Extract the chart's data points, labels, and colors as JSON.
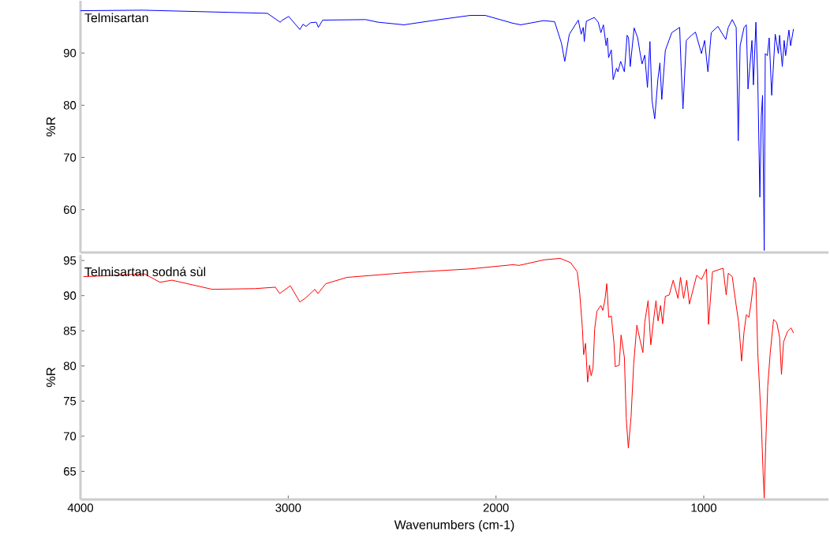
{
  "chart_data": [
    {
      "type": "line",
      "ylabel": "%R",
      "xlim": [
        4000,
        400
      ],
      "ylim": [
        51.8,
        100
      ],
      "yticks": [
        60,
        70,
        80,
        90
      ],
      "tick_labels": "y",
      "grid": false,
      "legend": false,
      "series": [
        {
          "name": "Telmisartan",
          "color": "#0000ff",
          "x": [
            4000,
            3700,
            3400,
            3100,
            3039,
            3028,
            2998,
            2944,
            2929,
            2914,
            2893,
            2865,
            2855,
            2834,
            2627,
            2568,
            2443,
            2272,
            2124,
            2052,
            1919,
            1881,
            1771,
            1718,
            1685,
            1669,
            1647,
            1604,
            1590,
            1580,
            1575,
            1565,
            1527,
            1508,
            1495,
            1483,
            1470,
            1464,
            1458,
            1445,
            1436,
            1420,
            1413,
            1400,
            1382,
            1369,
            1362,
            1354,
            1335,
            1318,
            1306,
            1297,
            1284,
            1271,
            1259,
            1249,
            1236,
            1221,
            1211,
            1202,
            1185,
            1154,
            1116,
            1109,
            1100,
            1084,
            1059,
            1040,
            1011,
            996,
            980,
            964,
            932,
            894,
            882,
            863,
            844,
            834,
            825,
            806,
            795,
            787,
            768,
            761,
            749,
            740,
            730,
            723,
            717,
            709,
            704,
            694,
            685,
            673,
            656,
            641,
            635,
            622,
            613,
            606,
            590,
            582,
            568
          ],
          "values": [
            98.1,
            98.2,
            97.9,
            97.6,
            95.9,
            96.3,
            97.0,
            94.5,
            95.5,
            95.1,
            95.8,
            95.9,
            94.9,
            96.3,
            96.4,
            95.9,
            95.4,
            96.4,
            97.2,
            97.2,
            95.7,
            95.4,
            96.2,
            96.0,
            91.9,
            88.4,
            93.6,
            96.3,
            93.6,
            94.9,
            92.2,
            96.1,
            96.8,
            95.9,
            93.9,
            95.4,
            91.4,
            92.9,
            89.1,
            90.6,
            84.9,
            87.1,
            86.4,
            88.4,
            86.4,
            93.4,
            92.9,
            87.4,
            94.8,
            92.9,
            89.9,
            87.9,
            89.6,
            83.4,
            92.2,
            80.9,
            77.4,
            84.9,
            88.1,
            81.1,
            90.5,
            93.9,
            94.9,
            87.4,
            79.3,
            92.4,
            93.4,
            94.0,
            89.9,
            92.4,
            86.4,
            93.9,
            95.1,
            92.6,
            94.9,
            96.4,
            94.9,
            73.2,
            91.4,
            94.9,
            95.4,
            83.1,
            92.4,
            83.9,
            95.9,
            84.9,
            62.4,
            77.9,
            81.9,
            52.2,
            89.9,
            89.5,
            92.9,
            81.9,
            93.6,
            89.9,
            93.4,
            87.4,
            92.4,
            89.5,
            94.4,
            91.4,
            94.6
          ]
        }
      ]
    },
    {
      "type": "line",
      "xlabel": "Wavenumbers (cm-1)",
      "ylabel": "%R",
      "xlim": [
        4000,
        400
      ],
      "ylim": [
        61,
        95.8
      ],
      "xticks": [
        4000,
        3000,
        2000,
        1000
      ],
      "yticks": [
        65,
        70,
        75,
        80,
        85,
        90,
        95
      ],
      "grid": false,
      "legend": false,
      "series": [
        {
          "name": "Telmisartan sodná sùl",
          "color": "#ff0000",
          "x": [
            3986,
            3825,
            3692,
            3617,
            3560,
            3366,
            3159,
            3062,
            3041,
            2990,
            2944,
            2915,
            2872,
            2857,
            2819,
            2717,
            2420,
            2124,
            1919,
            1889,
            1767,
            1691,
            1641,
            1609,
            1597,
            1584,
            1578,
            1569,
            1559,
            1550,
            1542,
            1533,
            1525,
            1514,
            1495,
            1486,
            1476,
            1467,
            1457,
            1445,
            1432,
            1426,
            1407,
            1398,
            1382,
            1373,
            1363,
            1350,
            1337,
            1322,
            1306,
            1293,
            1284,
            1268,
            1255,
            1242,
            1230,
            1220,
            1208,
            1198,
            1185,
            1166,
            1147,
            1124,
            1112,
            1097,
            1082,
            1069,
            1034,
            1011,
            987,
            977,
            958,
            907,
            892,
            882,
            863,
            844,
            832,
            818,
            806,
            795,
            783,
            774,
            757,
            749,
            740,
            723,
            714,
            709,
            702,
            692,
            680,
            664,
            649,
            635,
            626,
            616,
            597,
            580,
            568
          ],
          "values": [
            92.7,
            92.9,
            93.1,
            91.9,
            92.2,
            90.9,
            91.0,
            91.2,
            90.3,
            91.4,
            89.1,
            89.7,
            90.9,
            90.3,
            91.7,
            92.6,
            93.3,
            93.8,
            94.4,
            94.3,
            95.1,
            95.3,
            94.7,
            93.4,
            90.4,
            85.3,
            81.6,
            83.2,
            77.7,
            80.1,
            78.6,
            79.7,
            85.3,
            87.8,
            88.6,
            87.9,
            89.3,
            91.7,
            86.9,
            87.1,
            83.2,
            79.9,
            80.1,
            84.4,
            81.2,
            72.5,
            68.3,
            72.7,
            80.4,
            85.8,
            83.6,
            81.9,
            86.2,
            89.3,
            83.0,
            86.4,
            89.3,
            86.4,
            88.6,
            86.0,
            89.9,
            90.1,
            92.2,
            89.6,
            92.6,
            89.6,
            92.2,
            88.8,
            92.9,
            92.3,
            93.8,
            85.9,
            93.4,
            93.9,
            90.1,
            93.2,
            92.7,
            88.6,
            86.2,
            80.7,
            84.9,
            87.3,
            86.9,
            88.6,
            92.6,
            91.9,
            81.9,
            71.9,
            64.5,
            61.2,
            68.6,
            77.1,
            81.9,
            86.6,
            86.2,
            84.1,
            78.8,
            83.4,
            84.9,
            85.4,
            84.7
          ]
        }
      ]
    }
  ]
}
